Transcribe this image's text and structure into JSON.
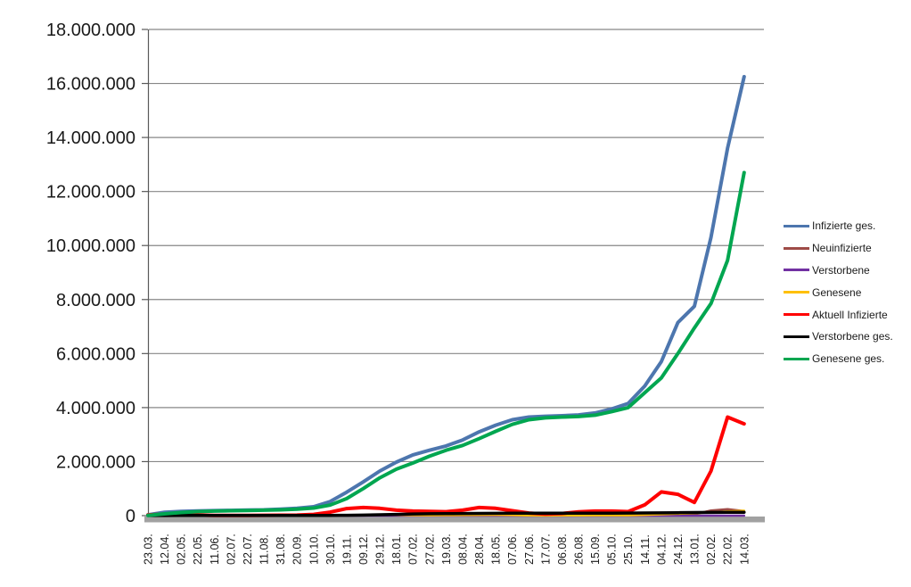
{
  "chart_data": {
    "type": "line",
    "title": "",
    "xlabel": "",
    "ylabel": "",
    "ylim": [
      0,
      18000000
    ],
    "grid": "horizontal",
    "legend_position": "right",
    "y_ticks": [
      "0",
      "2.000.000",
      "4.000.000",
      "6.000.000",
      "8.000.000",
      "10.000.000",
      "12.000.000",
      "14.000.000",
      "16.000.000",
      "18.000.000"
    ],
    "categories": [
      "23.03.",
      "12.04.",
      "02.05.",
      "22.05.",
      "11.06.",
      "02.07.",
      "22.07.",
      "11.08.",
      "31.08.",
      "20.09.",
      "10.10.",
      "30.10.",
      "19.11.",
      "09.12.",
      "29.12.",
      "18.01.",
      "07.02.",
      "27.02.",
      "19.03.",
      "08.04.",
      "28.04.",
      "18.05.",
      "07.06.",
      "27.06.",
      "17.07.",
      "06.08.",
      "26.08.",
      "15.09.",
      "05.10.",
      "25.10.",
      "14.11.",
      "04.12.",
      "24.12.",
      "13.01.",
      "02.02.",
      "22.02.",
      "14.03."
    ],
    "series": [
      {
        "name": "Infizierte ges.",
        "color": "#4d76ae",
        "stroke_width": 4,
        "values": [
          30000,
          125000,
          160000,
          175000,
          185000,
          195000,
          205000,
          215000,
          240000,
          270000,
          330000,
          520000,
          870000,
          1250000,
          1650000,
          1980000,
          2250000,
          2420000,
          2580000,
          2800000,
          3100000,
          3350000,
          3550000,
          3650000,
          3680000,
          3700000,
          3730000,
          3800000,
          3950000,
          4150000,
          4800000,
          5700000,
          7150000,
          7750000,
          10300000,
          13600000,
          16250000
        ]
      },
      {
        "name": "Neuinfizierte",
        "color": "#9e4b47",
        "stroke_width": 2.5,
        "values": [
          4000,
          6000,
          3000,
          1000,
          500,
          400,
          500,
          700,
          1200,
          1800,
          4000,
          15000,
          22000,
          25000,
          22000,
          15000,
          10000,
          8000,
          15000,
          20000,
          25000,
          15000,
          5000,
          2000,
          1500,
          3000,
          8000,
          10000,
          8000,
          12000,
          30000,
          60000,
          40000,
          50000,
          190000,
          240000,
          170000
        ]
      },
      {
        "name": "Verstorbene",
        "color": "#7231a2",
        "stroke_width": 2.5,
        "values": [
          200,
          300,
          250,
          150,
          100,
          50,
          50,
          50,
          50,
          50,
          100,
          300,
          600,
          800,
          900,
          800,
          600,
          400,
          300,
          250,
          250,
          200,
          150,
          100,
          80,
          80,
          100,
          150,
          200,
          250,
          300,
          400,
          500,
          400,
          300,
          300,
          250
        ]
      },
      {
        "name": "Genesene",
        "color": "#ffc000",
        "stroke_width": 2.5,
        "values": [
          2000,
          5000,
          4000,
          3000,
          2000,
          1500,
          1500,
          2000,
          2500,
          3000,
          5000,
          12000,
          20000,
          28000,
          30000,
          25000,
          18000,
          12000,
          15000,
          20000,
          28000,
          30000,
          20000,
          8000,
          4000,
          5000,
          10000,
          14000,
          12000,
          14000,
          30000,
          50000,
          70000,
          90000,
          120000,
          160000,
          180000
        ]
      },
      {
        "name": "Aktuell Infizierte",
        "color": "#ff0000",
        "stroke_width": 4,
        "values": [
          25000,
          55000,
          40000,
          20000,
          10000,
          9000,
          10000,
          12000,
          16000,
          20000,
          45000,
          130000,
          260000,
          300000,
          270000,
          200000,
          170000,
          160000,
          145000,
          200000,
          300000,
          270000,
          180000,
          95000,
          60000,
          80000,
          140000,
          170000,
          170000,
          150000,
          400000,
          880000,
          790000,
          490000,
          1650000,
          3650000,
          3400000
        ]
      },
      {
        "name": "Verstorbene ges.",
        "color": "#000000",
        "stroke_width": 3.5,
        "values": [
          2000,
          3000,
          7000,
          8000,
          8800,
          9000,
          9100,
          9200,
          9300,
          9400,
          9600,
          11000,
          14000,
          20000,
          32000,
          47000,
          62000,
          70000,
          74000,
          78000,
          82000,
          86000,
          89000,
          90500,
          91400,
          91800,
          92500,
          92900,
          93800,
          95300,
          97700,
          103000,
          110000,
          115000,
          118000,
          121000,
          126000
        ]
      },
      {
        "name": "Genesene ges.",
        "color": "#00a650",
        "stroke_width": 4,
        "values": [
          10000,
          65000,
          115000,
          150000,
          170000,
          180000,
          190000,
          200000,
          215000,
          240000,
          280000,
          390000,
          630000,
          1000000,
          1400000,
          1720000,
          1950000,
          2200000,
          2420000,
          2600000,
          2850000,
          3120000,
          3380000,
          3550000,
          3620000,
          3650000,
          3670000,
          3720000,
          3850000,
          4000000,
          4550000,
          5100000,
          6000000,
          6950000,
          7850000,
          9450000,
          12700000
        ]
      }
    ],
    "colors": {
      "gridline": "#878787",
      "axis": "#595959",
      "baseline_bar": "#a1a1a1",
      "label": "#1a1a1a"
    }
  }
}
